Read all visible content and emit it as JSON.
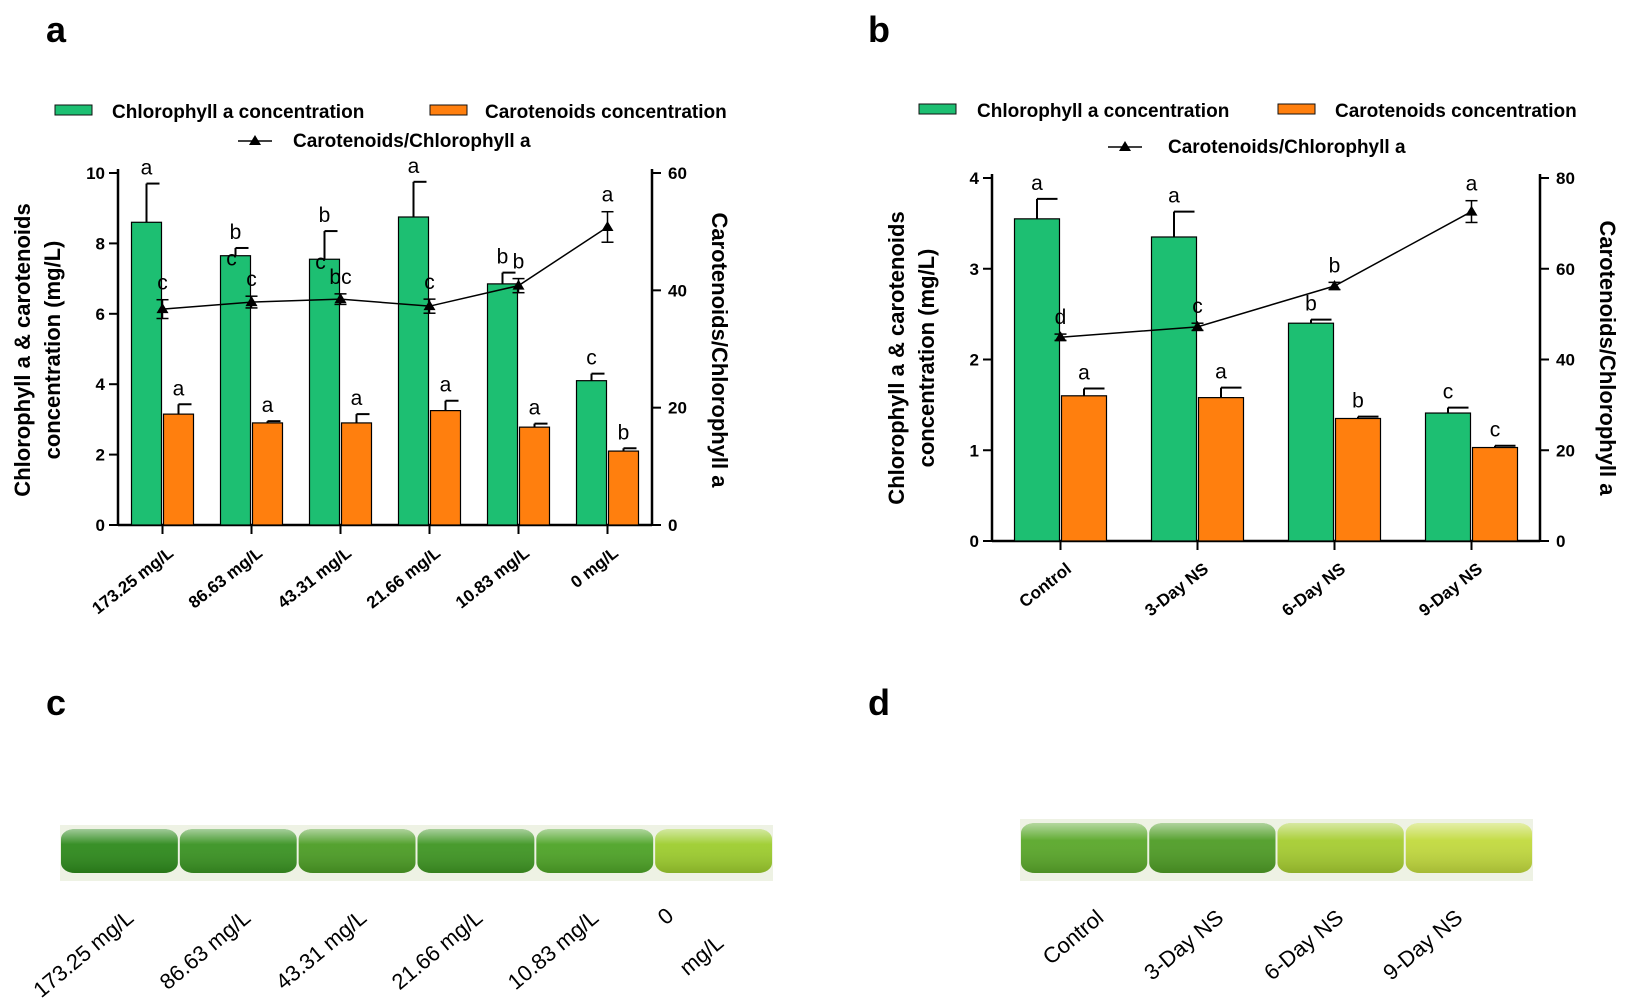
{
  "colors": {
    "chl": "#1dbf72",
    "car": "#ff7f0e",
    "line": "#000000"
  },
  "panels": [
    {
      "letter": "a",
      "legend": {
        "chl": "Chlorophyll a concentration",
        "car": "Carotenoids concentration",
        "ratio": "Carotenoids/Chlorophyll a"
      },
      "ylabel_lines": [
        "Chlorophyll a & carotenoids",
        "concentration (mg/L)"
      ],
      "y2label": "Carotenoids/Chlorophyll a"
    },
    {
      "letter": "b",
      "legend": {
        "chl": "Chlorophyll a concentration",
        "car": "Carotenoids concentration",
        "ratio": "Carotenoids/Chlorophyll a"
      },
      "ylabel_lines": [
        "Chlorophyll a & carotenoids",
        "concentration (mg/L)"
      ],
      "y2label": "Carotenoids/Chlorophyll a"
    }
  ],
  "chart_data": [
    {
      "type": "bar",
      "title": "a",
      "categories": [
        "173.25 mg/L",
        "86.63 mg/L",
        "43.31 mg/L",
        "21.66 mg/L",
        "10.83 mg/L",
        "0 mg/L"
      ],
      "ylim": [
        0,
        10
      ],
      "yticks": [
        0,
        2,
        4,
        6,
        8,
        10
      ],
      "y2lim": [
        0,
        60
      ],
      "y2ticks": [
        0,
        20,
        40,
        60
      ],
      "series": [
        {
          "name": "Chlorophyll a concentration",
          "values": [
            8.6,
            7.65,
            7.55,
            8.75,
            6.85,
            4.1
          ],
          "errors": [
            1.1,
            0.22,
            0.8,
            1.0,
            0.32,
            0.2
          ],
          "letters": [
            "a",
            "b",
            "b",
            "a",
            "b",
            "c"
          ]
        },
        {
          "name": "Carotenoids concentration",
          "values": [
            3.15,
            2.9,
            2.9,
            3.25,
            2.78,
            2.1
          ],
          "errors": [
            0.28,
            0.05,
            0.25,
            0.28,
            0.1,
            0.08
          ],
          "letters": [
            "a",
            "a",
            "a",
            "a",
            "a",
            "b"
          ]
        },
        {
          "name": "Carotenoids/Chlorophyll a",
          "axis": "right",
          "values": [
            36.8,
            38.0,
            38.5,
            37.3,
            40.8,
            50.8
          ],
          "errors": [
            1.6,
            1.0,
            0.9,
            1.2,
            1.2,
            2.6
          ],
          "letters": [
            "c",
            "c",
            "bc",
            "c",
            "b",
            "a"
          ]
        }
      ],
      "extra_annotations": [
        {
          "category": "86.63 mg/L",
          "text": "c"
        },
        {
          "category": "43.31 mg/L",
          "text": "c"
        }
      ]
    },
    {
      "type": "bar",
      "title": "b",
      "categories": [
        "Control",
        "3-Day NS",
        "6-Day NS",
        "9-Day NS"
      ],
      "ylim": [
        0,
        4
      ],
      "yticks": [
        0,
        1,
        2,
        3,
        4
      ],
      "y2lim": [
        0,
        80
      ],
      "y2ticks": [
        0,
        20,
        40,
        60,
        80
      ],
      "series": [
        {
          "name": "Chlorophyll a concentration",
          "values": [
            3.55,
            3.35,
            2.4,
            1.41
          ],
          "errors": [
            0.22,
            0.28,
            0.04,
            0.06
          ],
          "letters": [
            "a",
            "a",
            "b",
            "c"
          ]
        },
        {
          "name": "Carotenoids concentration",
          "values": [
            1.6,
            1.58,
            1.35,
            1.03
          ],
          "errors": [
            0.08,
            0.11,
            0.02,
            0.02
          ],
          "letters": [
            "a",
            "a",
            "b",
            "c"
          ]
        },
        {
          "name": "Carotenoids/Chlorophyll a",
          "axis": "right",
          "values": [
            44.9,
            47.2,
            56.2,
            72.6
          ],
          "errors": [
            0.7,
            0.8,
            0.8,
            2.4
          ],
          "letters": [
            "d",
            "c",
            "b",
            "a"
          ]
        }
      ],
      "extra_annotations": []
    }
  ],
  "photos": [
    {
      "letter": "c",
      "labels": [
        "173.25 mg/L",
        "86.63 mg/L",
        "43.31 mg/L",
        "21.66 mg/L",
        "10.83 mg/L",
        "0",
        "mg/L"
      ],
      "flask_colors": [
        "#2e8a1c",
        "#3a9322",
        "#4c9d25",
        "#3f9623",
        "#4ea427",
        "#9dcd2e"
      ]
    },
    {
      "letter": "d",
      "labels": [
        "Control",
        "3-Day NS",
        "6-Day NS",
        "9-Day NS"
      ],
      "flask_colors": [
        "#5aa82a",
        "#4f9d26",
        "#a6cd31",
        "#c2da3e"
      ]
    }
  ]
}
